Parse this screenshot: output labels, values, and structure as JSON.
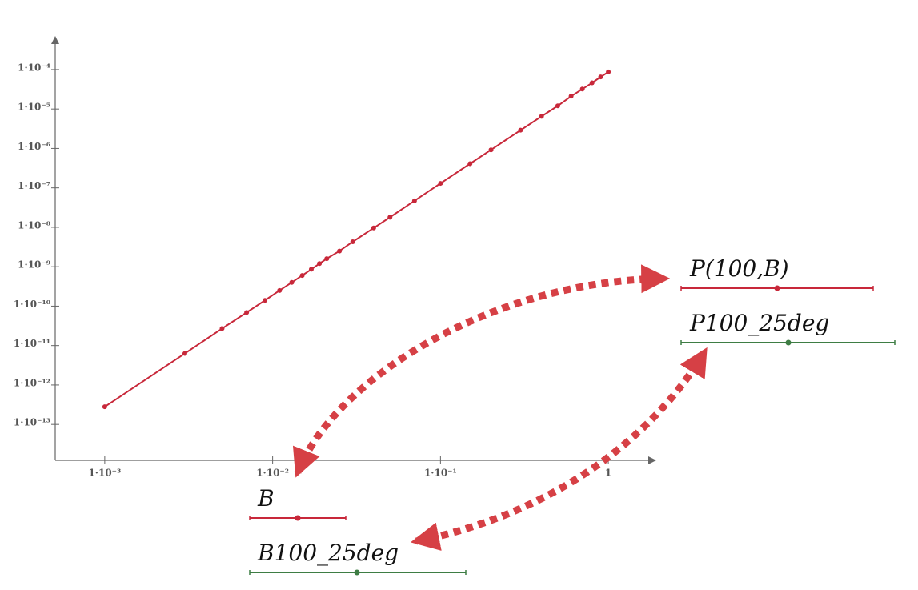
{
  "chart_data": {
    "type": "line",
    "x": [
      0.001,
      0.003,
      0.005,
      0.007,
      0.009,
      0.011,
      0.013,
      0.015,
      0.017,
      0.019,
      0.021,
      0.025,
      0.03,
      0.04,
      0.05,
      0.07,
      0.1,
      0.15,
      0.2,
      0.3,
      0.4,
      0.5,
      0.6,
      0.7,
      0.8,
      0.9,
      1
    ],
    "series": [
      {
        "color": "#c8283a",
        "values": [
          2.8e-13,
          6.3e-12,
          2.7e-11,
          6.9e-11,
          1.4e-10,
          2.5e-10,
          4e-10,
          6e-10,
          8.6e-10,
          1.2e-09,
          1.6e-09,
          2.5e-09,
          4.3e-09,
          9.6e-09,
          1.8e-08,
          4.7e-08,
          1.3e-07,
          4.1e-07,
          9.2e-07,
          2.9e-06,
          6.5e-06,
          1.2e-05,
          2.1e-05,
          3.2e-05,
          4.6e-05,
          6.5e-05,
          8.7e-05
        ]
      }
    ],
    "xlog": true,
    "ylog": true,
    "xlim": [
      0.000507,
      1.93
    ],
    "ylim": [
      1.23e-14,
      0.00071
    ],
    "xticks": [
      {
        "value": 0.001,
        "label": "1·10⁻³"
      },
      {
        "value": 0.01,
        "label": "1·10⁻²"
      },
      {
        "value": 0.1,
        "label": "1·10⁻¹"
      },
      1
    ],
    "yticks": [
      {
        "value": 1e-13,
        "label": "1·10⁻¹³"
      },
      {
        "value": 1e-12,
        "label": "1·10⁻¹²"
      },
      {
        "value": 1e-11,
        "label": "1·10⁻¹¹"
      },
      {
        "value": 1e-10,
        "label": "1·10⁻¹⁰"
      },
      {
        "value": 1e-09,
        "label": "1·10⁻⁹"
      },
      {
        "value": 1e-08,
        "label": "1·10⁻⁸"
      },
      {
        "value": 1e-07,
        "label": "1·10⁻⁷"
      },
      {
        "value": 1e-06,
        "label": "1·10⁻⁶"
      },
      {
        "value": 1e-05,
        "label": "1·10⁻⁵"
      },
      {
        "value": 0.0001,
        "label": "1·10⁻⁴"
      }
    ]
  },
  "sliders": [
    {
      "label": "P(100,B)",
      "color": "#c8283a"
    },
    {
      "label": "P100_25deg",
      "color": "#3e7d44"
    },
    {
      "label": "B",
      "color": "#c8283a"
    },
    {
      "label": "B100_25deg",
      "color": "#3e7d44"
    }
  ]
}
